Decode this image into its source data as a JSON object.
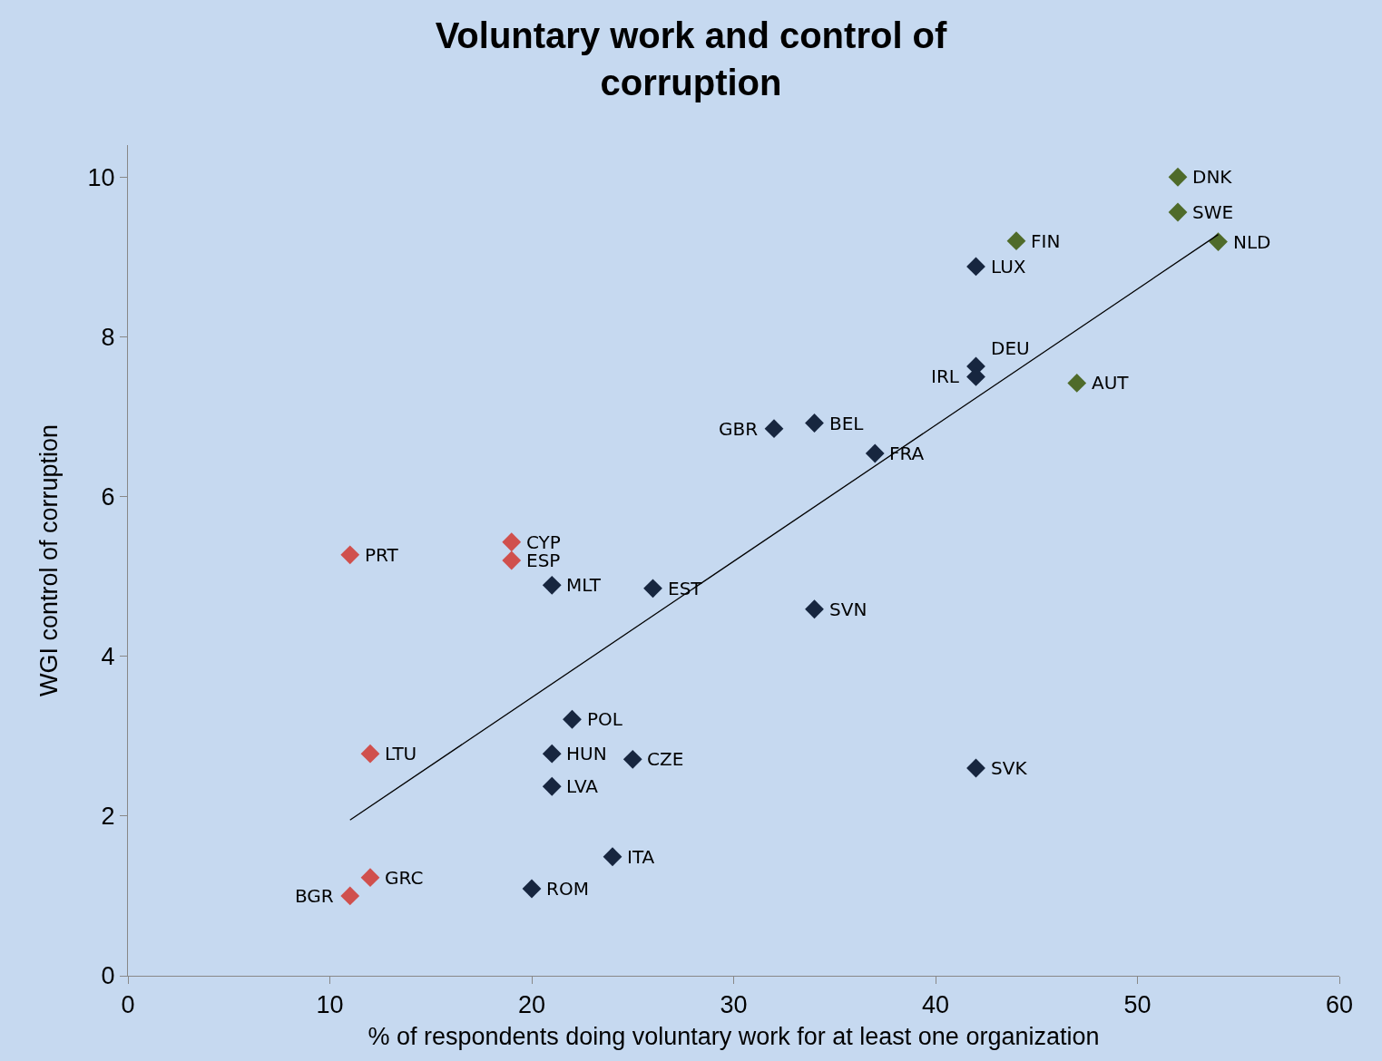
{
  "chart_data": {
    "type": "scatter",
    "title": "Voluntary work and control of corruption",
    "xlabel": "% of respondents doing voluntary work for at least one organization",
    "ylabel": "WGI control of corruption",
    "marker": "diamond",
    "grid": false,
    "xlim": [
      0,
      60
    ],
    "xticks": [
      0,
      10,
      20,
      30,
      40,
      50,
      60
    ],
    "ylim": [
      0,
      10.4
    ],
    "yticks": [
      0,
      2,
      4,
      6,
      8,
      10
    ],
    "series": [
      {
        "color": "#d0504d",
        "x": [
          11,
          19,
          19,
          12,
          12,
          11
        ],
        "values": [
          5.27,
          5.43,
          5.2,
          2.78,
          1.23,
          1.0
        ]
      },
      {
        "color": "#17263f",
        "x": [
          42,
          42,
          42,
          32,
          34,
          37,
          21,
          26,
          34,
          22,
          21,
          25,
          21,
          42,
          24,
          20
        ],
        "values": [
          8.88,
          7.63,
          7.5,
          6.85,
          6.92,
          6.54,
          4.89,
          4.85,
          4.59,
          3.21,
          2.78,
          2.71,
          2.37,
          2.6,
          1.49,
          1.09
        ]
      },
      {
        "color": "#4f6b2a",
        "x": [
          52,
          52,
          54,
          44,
          47
        ],
        "values": [
          10.0,
          9.56,
          9.19,
          9.2,
          7.42
        ]
      },
      {
        "type": "line",
        "color": "#000000",
        "marker": "none",
        "x": [
          11,
          54
        ],
        "values": [
          1.95,
          9.28
        ]
      }
    ],
    "annotations": [
      {
        "text": "PRT",
        "x": 11,
        "y": 5.27
      },
      {
        "text": "CYP",
        "x": 19,
        "y": 5.43
      },
      {
        "text": "ESP",
        "x": 19,
        "y": 5.2
      },
      {
        "text": "LTU",
        "x": 12,
        "y": 2.78
      },
      {
        "text": "GRC",
        "x": 12,
        "y": 1.23
      },
      {
        "text": "BGR",
        "x": 11,
        "y": 1.0
      },
      {
        "text": "LUX",
        "x": 42,
        "y": 8.88
      },
      {
        "text": "DEU",
        "x": 42,
        "y": 7.63
      },
      {
        "text": "IRL",
        "x": 42,
        "y": 7.5
      },
      {
        "text": "GBR",
        "x": 32,
        "y": 6.85
      },
      {
        "text": "BEL",
        "x": 34,
        "y": 6.92
      },
      {
        "text": "FRA",
        "x": 37,
        "y": 6.54
      },
      {
        "text": "MLT",
        "x": 21,
        "y": 4.89
      },
      {
        "text": "EST",
        "x": 26,
        "y": 4.85
      },
      {
        "text": "SVN",
        "x": 34,
        "y": 4.59
      },
      {
        "text": "POL",
        "x": 22,
        "y": 3.21
      },
      {
        "text": "HUN",
        "x": 21,
        "y": 2.78
      },
      {
        "text": "CZE",
        "x": 25,
        "y": 2.71
      },
      {
        "text": "LVA",
        "x": 21,
        "y": 2.37
      },
      {
        "text": "SVK",
        "x": 42,
        "y": 2.6
      },
      {
        "text": "ITA",
        "x": 24,
        "y": 1.49
      },
      {
        "text": "ROM",
        "x": 20,
        "y": 1.09
      },
      {
        "text": "DNK",
        "x": 52,
        "y": 10.0
      },
      {
        "text": "SWE",
        "x": 52,
        "y": 9.56
      },
      {
        "text": "NLD",
        "x": 54,
        "y": 9.19
      },
      {
        "text": "FIN",
        "x": 44,
        "y": 9.2
      },
      {
        "text": "AUT",
        "x": 47,
        "y": 7.42
      }
    ]
  }
}
